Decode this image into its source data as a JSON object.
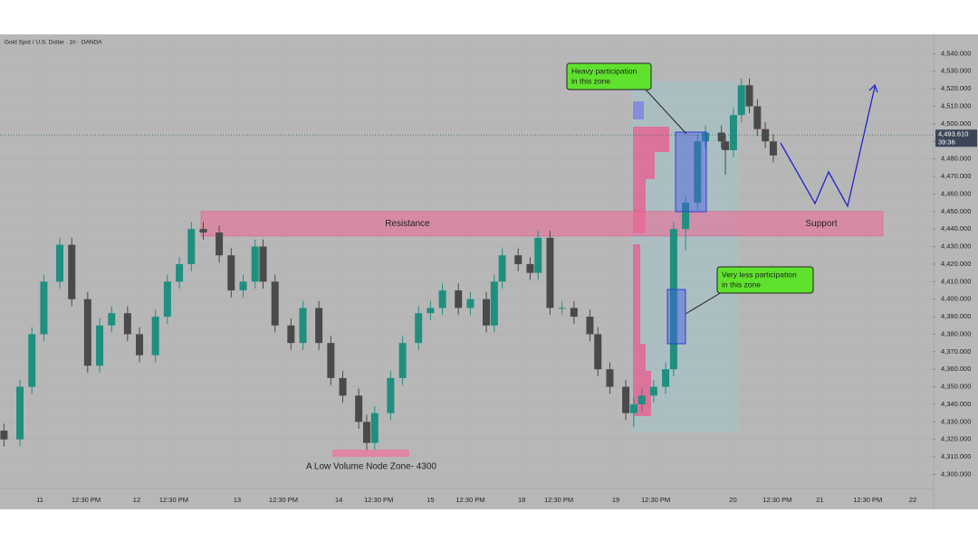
{
  "chart_data": {
    "type": "candlestick",
    "title": "Gold Spot / U.S. Dollar · 1h · OANDA",
    "x": [
      1,
      5,
      8,
      11,
      15,
      18,
      22,
      25,
      28,
      32,
      35,
      39,
      42,
      45,
      48,
      51,
      55,
      58,
      61,
      64,
      66,
      69,
      73,
      76,
      80,
      83,
      86,
      90,
      92,
      94,
      98,
      101,
      105,
      108,
      111,
      115,
      118,
      122,
      124,
      126,
      130,
      133,
      135,
      138,
      141,
      144,
      148,
      150,
      153,
      157,
      159,
      161,
      164,
      167,
      169,
      172,
      175,
      177,
      181,
      182,
      184,
      186,
      188,
      190,
      192,
      194
    ],
    "open": [
      4325,
      4320,
      4350,
      4380,
      4410,
      4431,
      4400,
      4362,
      4385,
      4392,
      4380,
      4368,
      4390,
      4410,
      4420,
      4440,
      4438,
      4425,
      4405,
      4410,
      4430,
      4410,
      4385,
      4375,
      4395,
      4375,
      4355,
      4345,
      4330,
      4318,
      4335,
      4355,
      4375,
      4392,
      4395,
      4405,
      4395,
      4400,
      4385,
      4410,
      4425,
      4420,
      4415,
      4435,
      4395,
      4395,
      4390,
      4380,
      4360,
      4350,
      4335,
      4340,
      4345,
      4350,
      4360,
      4440,
      4455,
      4490,
      4495,
      4490,
      4485,
      4505,
      4522,
      4510,
      4497,
      4490
    ],
    "high": [
      4329,
      4354,
      4384,
      4414,
      4435,
      4435,
      4404,
      4389,
      4396,
      4396,
      4384,
      4394,
      4414,
      4424,
      4444,
      4444,
      4442,
      4429,
      4414,
      4434,
      4434,
      4414,
      4389,
      4399,
      4399,
      4379,
      4359,
      4349,
      4334,
      4339,
      4359,
      4379,
      4396,
      4399,
      4409,
      4409,
      4404,
      4404,
      4414,
      4429,
      4429,
      4424,
      4439,
      4439,
      4399,
      4399,
      4394,
      4384,
      4364,
      4354,
      4344,
      4349,
      4354,
      4364,
      4444,
      4459,
      4494,
      4499,
      4499,
      4494,
      4509,
      4526,
      4526,
      4514,
      4501,
      4494
    ],
    "low": [
      4316,
      4316,
      4346,
      4376,
      4406,
      4396,
      4358,
      4358,
      4381,
      4376,
      4364,
      4364,
      4386,
      4406,
      4416,
      4434,
      4421,
      4401,
      4401,
      4406,
      4406,
      4381,
      4371,
      4371,
      4371,
      4351,
      4341,
      4326,
      4314,
      4314,
      4331,
      4351,
      4371,
      4388,
      4391,
      4391,
      4391,
      4381,
      4381,
      4406,
      4416,
      4411,
      4411,
      4391,
      4391,
      4386,
      4376,
      4356,
      4346,
      4331,
      4327,
      4336,
      4341,
      4346,
      4356,
      4428,
      4451,
      4486,
      4486,
      4471,
      4481,
      4501,
      4506,
      4493,
      4486,
      4478
    ],
    "close": [
      4320,
      4350,
      4380,
      4410,
      4431,
      4400,
      4362,
      4385,
      4392,
      4380,
      4368,
      4390,
      4410,
      4420,
      4440,
      4438,
      4425,
      4405,
      4410,
      4430,
      4410,
      4385,
      4375,
      4395,
      4375,
      4355,
      4345,
      4330,
      4318,
      4335,
      4355,
      4375,
      4392,
      4395,
      4405,
      4395,
      4400,
      4385,
      4410,
      4425,
      4420,
      4415,
      4435,
      4395,
      4395,
      4390,
      4380,
      4360,
      4350,
      4335,
      4340,
      4345,
      4350,
      4360,
      4440,
      4455,
      4490,
      4495,
      4490,
      4485,
      4505,
      4522,
      4510,
      4497,
      4490,
      4482
    ],
    "up_color": "#1f8f80",
    "down_color": "#4a4a4a",
    "xlim": [
      0,
      234
    ],
    "xticks": [
      {
        "value": 10,
        "label": "11"
      },
      {
        "value": 21.6,
        "label": "12:30 PM"
      },
      {
        "value": 34.3,
        "label": "12"
      },
      {
        "value": 43.6,
        "label": "12:30 PM"
      },
      {
        "value": 59.5,
        "label": "13"
      },
      {
        "value": 71.1,
        "label": "12:30 PM"
      },
      {
        "value": 85,
        "label": "14"
      },
      {
        "value": 95,
        "label": "12:30 PM"
      },
      {
        "value": 108,
        "label": "15"
      },
      {
        "value": 118,
        "label": "12:30 PM"
      },
      {
        "value": 130.9,
        "label": "18"
      },
      {
        "value": 140.2,
        "label": "12:30 PM"
      },
      {
        "value": 154.5,
        "label": "19"
      },
      {
        "value": 164.5,
        "label": "12:30 PM"
      },
      {
        "value": 183.9,
        "label": "20"
      },
      {
        "value": 195,
        "label": "12:30 PM"
      },
      {
        "value": 205.7,
        "label": "21"
      },
      {
        "value": 217.7,
        "label": "12:30 PM"
      },
      {
        "value": 229,
        "label": "22"
      }
    ],
    "ylim": [
      4292,
      4550
    ],
    "yticks": [
      {
        "value": 4300,
        "label": "4,300.000"
      },
      {
        "value": 4310,
        "label": "4,310.000"
      },
      {
        "value": 4320,
        "label": "4,320.000"
      },
      {
        "value": 4330,
        "label": "4,330.000"
      },
      {
        "value": 4340,
        "label": "4,340.000"
      },
      {
        "value": 4350,
        "label": "4,350.000"
      },
      {
        "value": 4360,
        "label": "4,360.000"
      },
      {
        "value": 4370,
        "label": "4,370.000"
      },
      {
        "value": 4380,
        "label": "4,380.000"
      },
      {
        "value": 4390,
        "label": "4,390.000"
      },
      {
        "value": 4400,
        "label": "4,400.000"
      },
      {
        "value": 4410,
        "label": "4,410.000"
      },
      {
        "value": 4420,
        "label": "4,420.000"
      },
      {
        "value": 4430,
        "label": "4,430.000"
      },
      {
        "value": 4440,
        "label": "4,440.000"
      },
      {
        "value": 4450,
        "label": "4,450.000"
      },
      {
        "value": 4460,
        "label": "4,460.000"
      },
      {
        "value": 4470,
        "label": "4,470.000"
      },
      {
        "value": 4480,
        "label": "4,480.000"
      },
      {
        "value": 4490,
        "label": "4,490.000"
      },
      {
        "value": 4500,
        "label": "4,500.000"
      },
      {
        "value": 4510,
        "label": "4,510.000"
      },
      {
        "value": 4520,
        "label": "4,520.000"
      },
      {
        "value": 4530,
        "label": "4,530.000"
      },
      {
        "value": 4540,
        "label": "4,540.000"
      }
    ],
    "grid": true,
    "last_price": {
      "value": 4493.61,
      "label": "4,493.610"
    },
    "countdown": "39:36",
    "zone": {
      "low": 4436,
      "high": 4450,
      "left_label": "Resistance",
      "right_label": "Support"
    },
    "lvn_label": "A Low Volume Node Zone- 4300",
    "heavy_note": [
      "Heavy participation",
      "in this zone"
    ],
    "light_note": [
      "Very less participation",
      "in this zone"
    ]
  }
}
